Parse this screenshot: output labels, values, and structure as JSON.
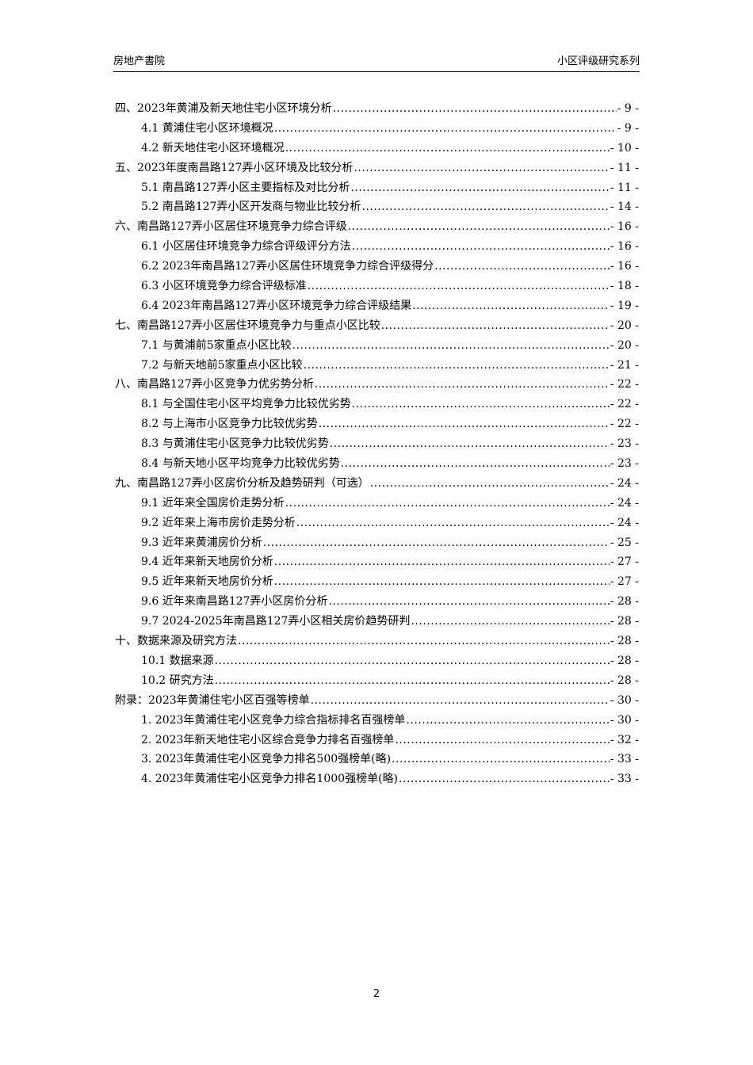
{
  "header": {
    "left": "房地产書院",
    "right": "小区评级研究系列"
  },
  "toc": [
    {
      "level": 1,
      "title": "四、2023年黄浦及新天地住宅小区环境分析",
      "page": "- 9 -"
    },
    {
      "level": 2,
      "title": "4.1 黄浦住宅小区环境概况",
      "page": "- 9 -"
    },
    {
      "level": 2,
      "title": "4.2 新天地住宅小区环境概况",
      "page": "- 10 -"
    },
    {
      "level": 1,
      "title": "五、2023年度南昌路127弄小区环境及比较分析",
      "page": "- 11 -"
    },
    {
      "level": 2,
      "title": "5.1 南昌路127弄小区主要指标及对比分析",
      "page": "- 11 -"
    },
    {
      "level": 2,
      "title": "5.2 南昌路127弄小区开发商与物业比较分析",
      "page": "- 14 -"
    },
    {
      "level": 1,
      "title": "六、南昌路127弄小区居住环境竞争力综合评级",
      "page": "- 16 -"
    },
    {
      "level": 2,
      "title": "6.1 小区居住环境竞争力综合评级评分方法",
      "page": "- 16 -"
    },
    {
      "level": 2,
      "title": "6.2 2023年南昌路127弄小区居住环境竞争力综合评级得分",
      "page": "- 16 -"
    },
    {
      "level": 2,
      "title": "6.3 小区环境竞争力综合评级标准",
      "page": "- 18 -"
    },
    {
      "level": 2,
      "title": "6.4 2023年南昌路127弄小区环境竞争力综合评级结果",
      "page": "- 19 -"
    },
    {
      "level": 1,
      "title": "七、南昌路127弄小区居住环境竞争力与重点小区比较",
      "page": "- 20 -"
    },
    {
      "level": 2,
      "title": "7.1 与黄浦前5家重点小区比较",
      "page": "- 20 -"
    },
    {
      "level": 2,
      "title": "7.2 与新天地前5家重点小区比较",
      "page": "- 21 -"
    },
    {
      "level": 1,
      "title": "八、南昌路127弄小区竞争力优劣势分析",
      "page": "- 22 -"
    },
    {
      "level": 2,
      "title": "8.1 与全国住宅小区平均竞争力比较优劣势",
      "page": "- 22 -"
    },
    {
      "level": 2,
      "title": "8.2 与上海市小区竞争力比较优劣势",
      "page": "- 22 -"
    },
    {
      "level": 2,
      "title": "8.3 与黄浦住宅小区竞争力比较优劣势",
      "page": "- 23 -"
    },
    {
      "level": 2,
      "title": "8.4 与新天地小区平均竞争力比较优劣势",
      "page": "- 23 -"
    },
    {
      "level": 1,
      "title": "九、南昌路127弄小区房价分析及趋势研判（可选）",
      "page": "- 24 -"
    },
    {
      "level": 2,
      "title": "9.1 近年来全国房价走势分析",
      "page": "- 24 -"
    },
    {
      "level": 2,
      "title": "9.2 近年来上海市房价走势分析",
      "page": "- 24 -"
    },
    {
      "level": 2,
      "title": "9.3 近年来黄浦房价分析",
      "page": "- 25 -"
    },
    {
      "level": 2,
      "title": "9.4 近年来新天地房价分析",
      "page": "- 27 -"
    },
    {
      "level": 2,
      "title": "9.5 近年来新天地房价分析",
      "page": "- 27 -"
    },
    {
      "level": 2,
      "title": "9.6 近年来南昌路127弄小区房价分析",
      "page": "- 28 -"
    },
    {
      "level": 2,
      "title": "9.7 2024-2025年南昌路127弄小区相关房价趋势研判",
      "page": "- 28 -"
    },
    {
      "level": 1,
      "title": "十、数据来源及研究方法",
      "page": "- 28 -"
    },
    {
      "level": 2,
      "title": "10.1 数据来源",
      "page": "- 28 -"
    },
    {
      "level": 2,
      "title": "10.2 研究方法",
      "page": "- 28 -"
    },
    {
      "level": 1,
      "title": "附录：2023年黄浦住宅小区百强等榜单",
      "page": "- 30 -"
    },
    {
      "level": 2,
      "title": "1. 2023年黄浦住宅小区竞争力综合指标排名百强榜单",
      "page": "- 30 -"
    },
    {
      "level": 2,
      "title": "2. 2023年新天地住宅小区综合竞争力排名百强榜单",
      "page": "- 32 -"
    },
    {
      "level": 2,
      "title": "3. 2023年黄浦住宅小区竞争力排名500强榜单(略)",
      "page": "- 33 -"
    },
    {
      "level": 2,
      "title": "4. 2023年黄浦住宅小区竞争力排名1000强榜单(略)",
      "page": "- 33 -"
    }
  ],
  "footer": {
    "page_number": "2"
  }
}
